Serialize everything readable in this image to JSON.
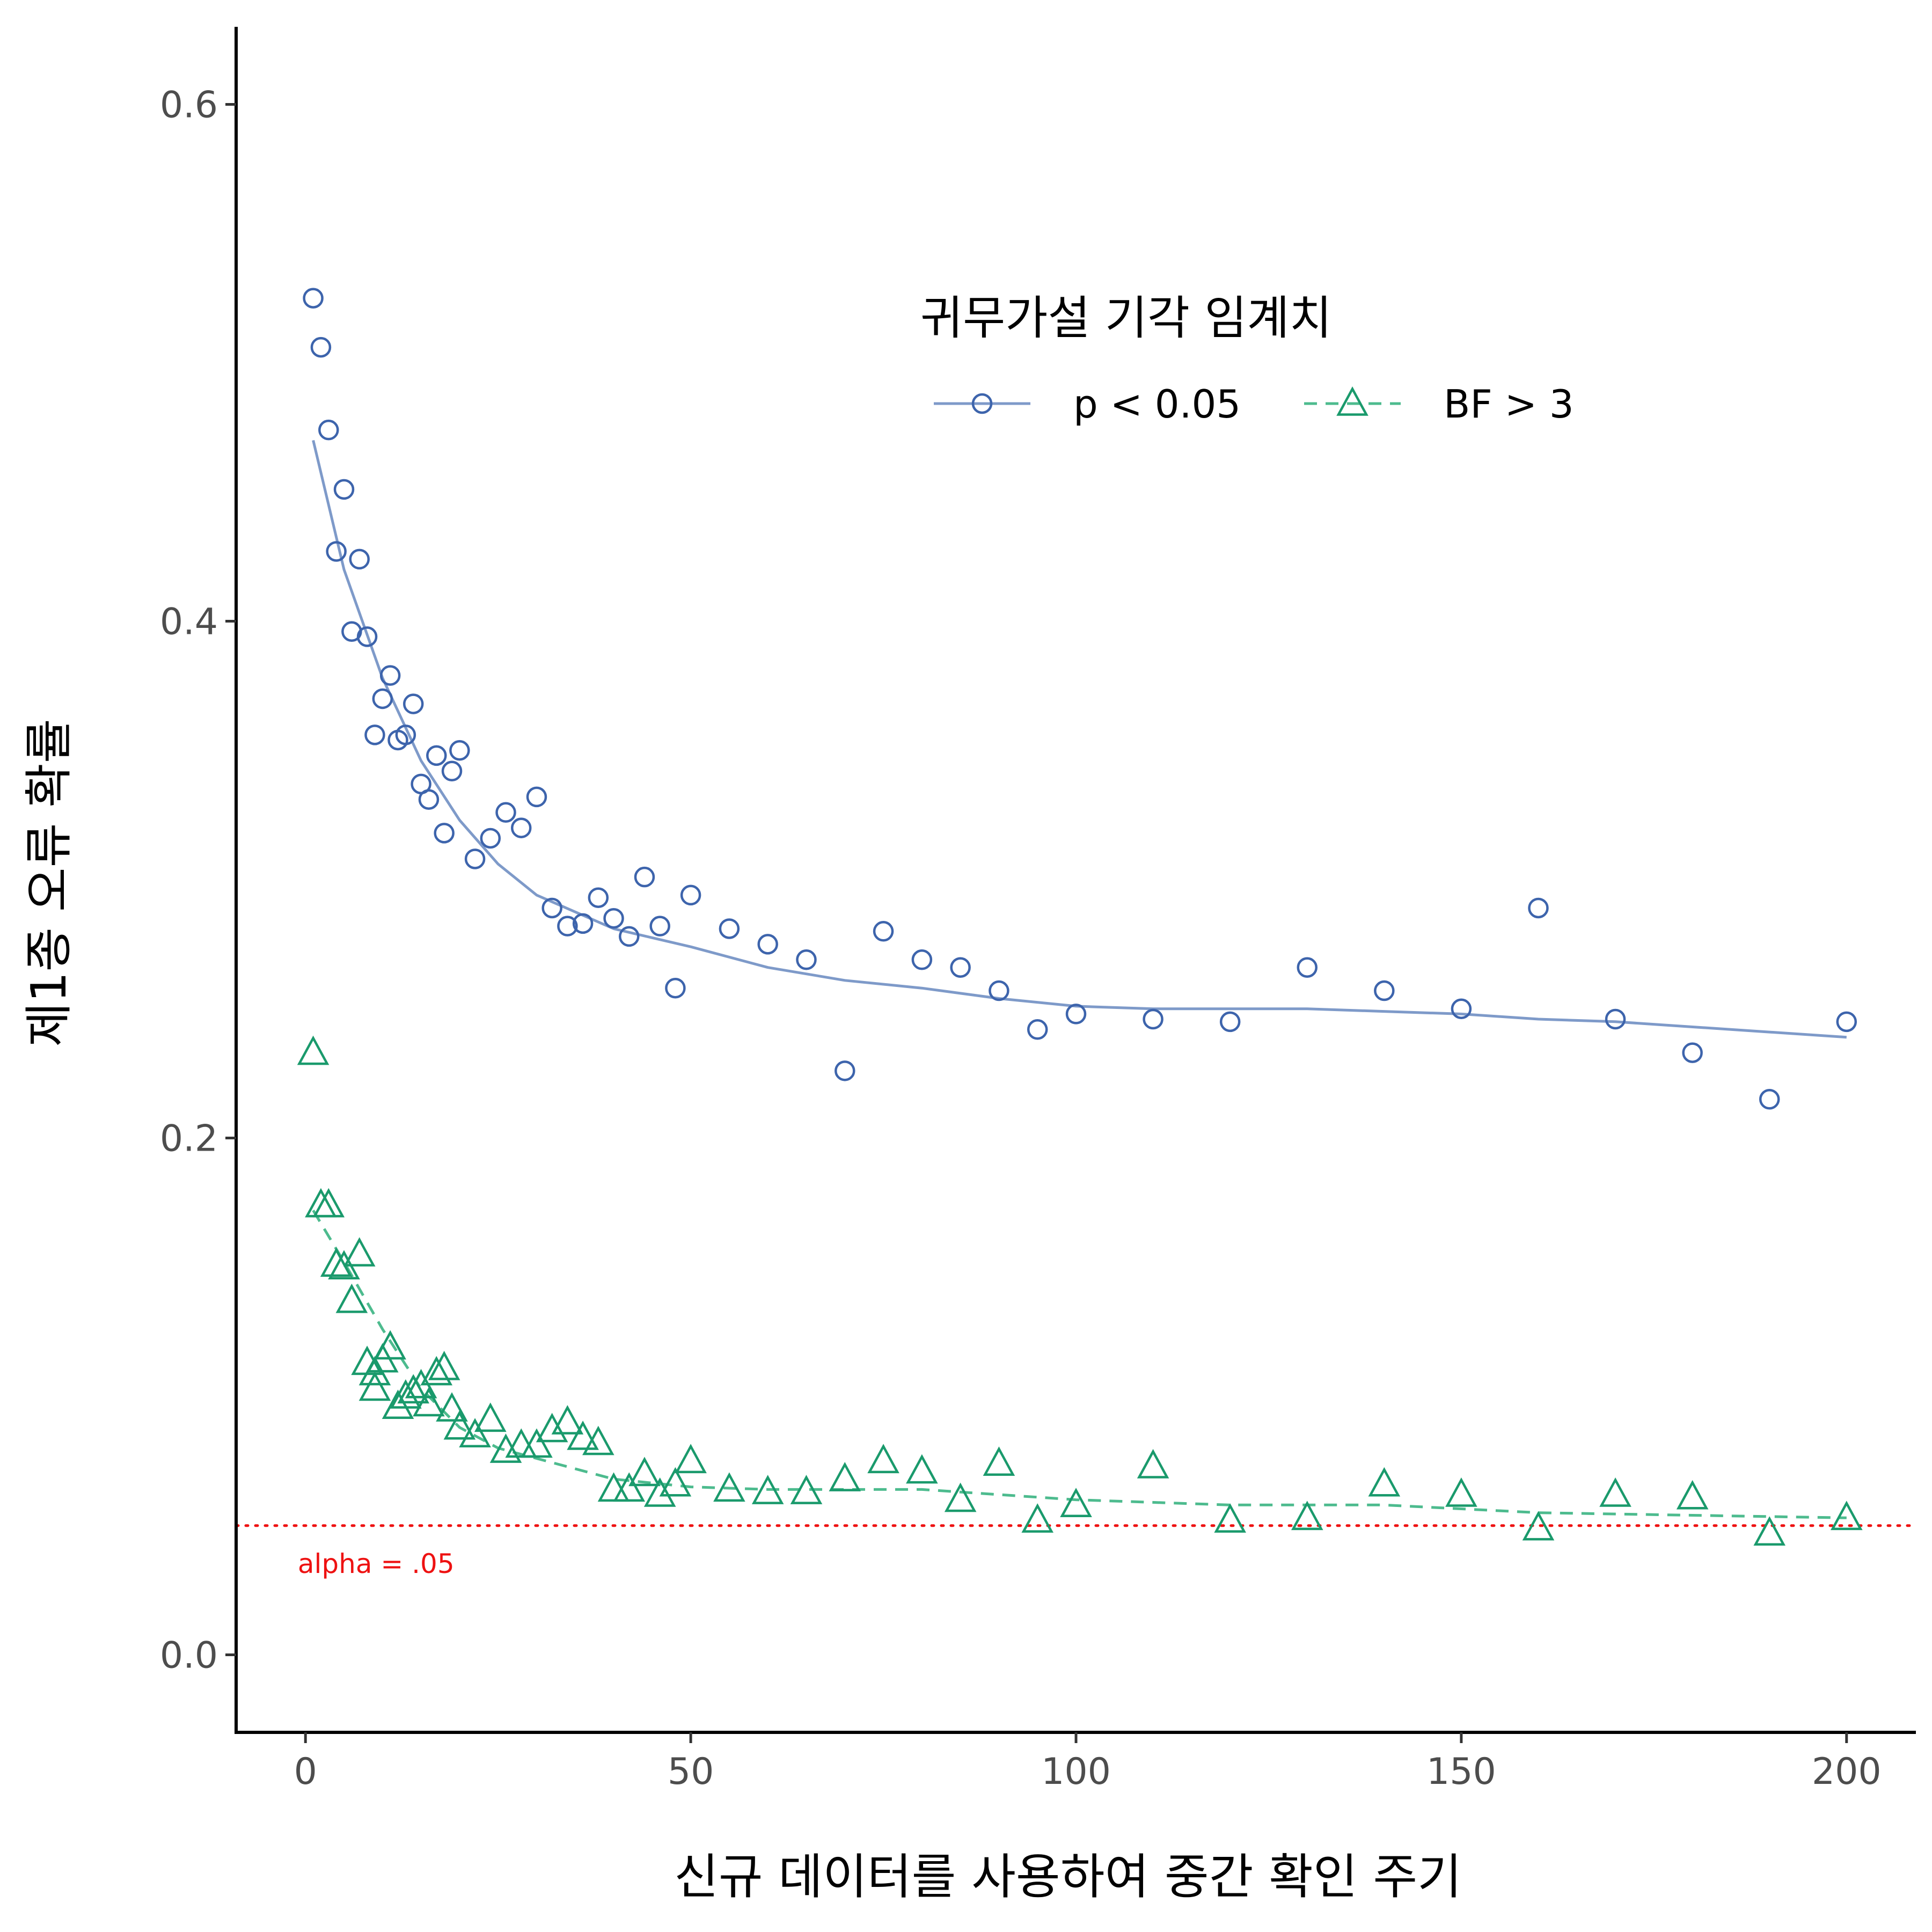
{
  "chart_data": {
    "type": "scatter",
    "xlabel": "신규 데이터를 사용하여 중간 확인 주기",
    "ylabel": "제1종 오류 확률",
    "xlim": [
      -9,
      209
    ],
    "ylim": [
      -0.03,
      0.63
    ],
    "x_ticks": [
      0,
      50,
      100,
      150,
      200
    ],
    "y_ticks": [
      0.0,
      0.2,
      0.4,
      0.6
    ],
    "x_tick_labels": [
      "0",
      "50",
      "100",
      "150",
      "200"
    ],
    "y_tick_labels": [
      "0.0",
      "0.2",
      "0.4",
      "0.6"
    ],
    "grid": false,
    "legend": {
      "title": "귀무가설 기각 임계치",
      "placement": "top-right (inside)",
      "orientation": "horizontal"
    },
    "reference_line": {
      "y": 0.05,
      "label": "alpha = .05",
      "color": "#ee1111",
      "style": "dotted"
    },
    "series": [
      {
        "name": "p < 0.05",
        "marker": "circle",
        "color": "#3d64ac",
        "line_color": "#7e9ac9",
        "line_style": "solid",
        "points": [
          [
            1,
            0.525
          ],
          [
            2,
            0.506
          ],
          [
            3,
            0.474
          ],
          [
            5,
            0.451
          ],
          [
            4,
            0.427
          ],
          [
            7,
            0.424
          ],
          [
            6,
            0.396
          ],
          [
            8,
            0.394
          ],
          [
            11,
            0.379
          ],
          [
            10,
            0.37
          ],
          [
            14,
            0.368
          ],
          [
            9,
            0.356
          ],
          [
            13,
            0.356
          ],
          [
            12,
            0.354
          ],
          [
            20,
            0.35
          ],
          [
            17,
            0.348
          ],
          [
            19,
            0.342
          ],
          [
            15,
            0.337
          ],
          [
            30,
            0.332
          ],
          [
            16,
            0.331
          ],
          [
            26,
            0.326
          ],
          [
            28,
            0.32
          ],
          [
            18,
            0.318
          ],
          [
            24,
            0.316
          ],
          [
            22,
            0.308
          ],
          [
            44,
            0.301
          ],
          [
            50,
            0.294
          ],
          [
            38,
            0.293
          ],
          [
            32,
            0.289
          ],
          [
            40,
            0.285
          ],
          [
            34,
            0.282
          ],
          [
            36,
            0.283
          ],
          [
            46,
            0.282
          ],
          [
            55,
            0.281
          ],
          [
            42,
            0.278
          ],
          [
            75,
            0.28
          ],
          [
            60,
            0.275
          ],
          [
            65,
            0.269
          ],
          [
            80,
            0.269
          ],
          [
            85,
            0.266
          ],
          [
            130,
            0.266
          ],
          [
            48,
            0.258
          ],
          [
            90,
            0.257
          ],
          [
            140,
            0.257
          ],
          [
            160,
            0.289
          ],
          [
            150,
            0.25
          ],
          [
            100,
            0.248
          ],
          [
            110,
            0.246
          ],
          [
            170,
            0.246
          ],
          [
            120,
            0.245
          ],
          [
            200,
            0.245
          ],
          [
            95,
            0.242
          ],
          [
            180,
            0.233
          ],
          [
            70,
            0.226
          ],
          [
            190,
            0.215
          ]
        ],
        "fit": [
          [
            1,
            0.47
          ],
          [
            5,
            0.42
          ],
          [
            10,
            0.378
          ],
          [
            15,
            0.346
          ],
          [
            20,
            0.323
          ],
          [
            25,
            0.306
          ],
          [
            30,
            0.294
          ],
          [
            40,
            0.281
          ],
          [
            50,
            0.274
          ],
          [
            60,
            0.266
          ],
          [
            70,
            0.261
          ],
          [
            80,
            0.258
          ],
          [
            90,
            0.254
          ],
          [
            100,
            0.251
          ],
          [
            110,
            0.25
          ],
          [
            120,
            0.25
          ],
          [
            130,
            0.25
          ],
          [
            140,
            0.249
          ],
          [
            150,
            0.248
          ],
          [
            160,
            0.246
          ],
          [
            170,
            0.245
          ],
          [
            180,
            0.243
          ],
          [
            190,
            0.241
          ],
          [
            200,
            0.239
          ]
        ]
      },
      {
        "name": "BF > 3",
        "marker": "triangle",
        "color": "#1a9a6c",
        "line_color": "#4dbb8e",
        "line_style": "dashed",
        "points": [
          [
            1,
            0.233
          ],
          [
            2,
            0.174
          ],
          [
            3,
            0.174
          ],
          [
            7,
            0.155
          ],
          [
            4,
            0.151
          ],
          [
            5,
            0.15
          ],
          [
            6,
            0.137
          ],
          [
            11,
            0.119
          ],
          [
            8,
            0.113
          ],
          [
            10,
            0.114
          ],
          [
            18,
            0.111
          ],
          [
            17,
            0.109
          ],
          [
            9,
            0.109
          ],
          [
            9,
            0.103
          ],
          [
            14,
            0.102
          ],
          [
            15,
            0.104
          ],
          [
            13,
            0.1
          ],
          [
            12,
            0.096
          ],
          [
            16,
            0.097
          ],
          [
            19,
            0.095
          ],
          [
            24,
            0.091
          ],
          [
            34,
            0.09
          ],
          [
            20,
            0.088
          ],
          [
            32,
            0.087
          ],
          [
            22,
            0.085
          ],
          [
            36,
            0.084
          ],
          [
            38,
            0.082
          ],
          [
            28,
            0.081
          ],
          [
            26,
            0.079
          ],
          [
            30,
            0.081
          ],
          [
            50,
            0.075
          ],
          [
            75,
            0.075
          ],
          [
            110,
            0.073
          ],
          [
            90,
            0.074
          ],
          [
            80,
            0.071
          ],
          [
            44,
            0.07
          ],
          [
            70,
            0.068
          ],
          [
            140,
            0.066
          ],
          [
            42,
            0.064
          ],
          [
            40,
            0.064
          ],
          [
            48,
            0.066
          ],
          [
            55,
            0.064
          ],
          [
            60,
            0.063
          ],
          [
            65,
            0.063
          ],
          [
            150,
            0.062
          ],
          [
            170,
            0.062
          ],
          [
            180,
            0.061
          ],
          [
            46,
            0.062
          ],
          [
            85,
            0.06
          ],
          [
            100,
            0.058
          ],
          [
            95,
            0.052
          ],
          [
            120,
            0.052
          ],
          [
            130,
            0.053
          ],
          [
            200,
            0.053
          ],
          [
            160,
            0.049
          ],
          [
            190,
            0.047
          ]
        ],
        "fit": [
          [
            1,
            0.172
          ],
          [
            5,
            0.152
          ],
          [
            10,
            0.126
          ],
          [
            15,
            0.103
          ],
          [
            20,
            0.088
          ],
          [
            25,
            0.08
          ],
          [
            30,
            0.076
          ],
          [
            40,
            0.068
          ],
          [
            50,
            0.065
          ],
          [
            60,
            0.064
          ],
          [
            70,
            0.064
          ],
          [
            80,
            0.064
          ],
          [
            90,
            0.062
          ],
          [
            100,
            0.06
          ],
          [
            120,
            0.058
          ],
          [
            140,
            0.058
          ],
          [
            160,
            0.055
          ],
          [
            180,
            0.054
          ],
          [
            200,
            0.053
          ]
        ]
      }
    ]
  }
}
